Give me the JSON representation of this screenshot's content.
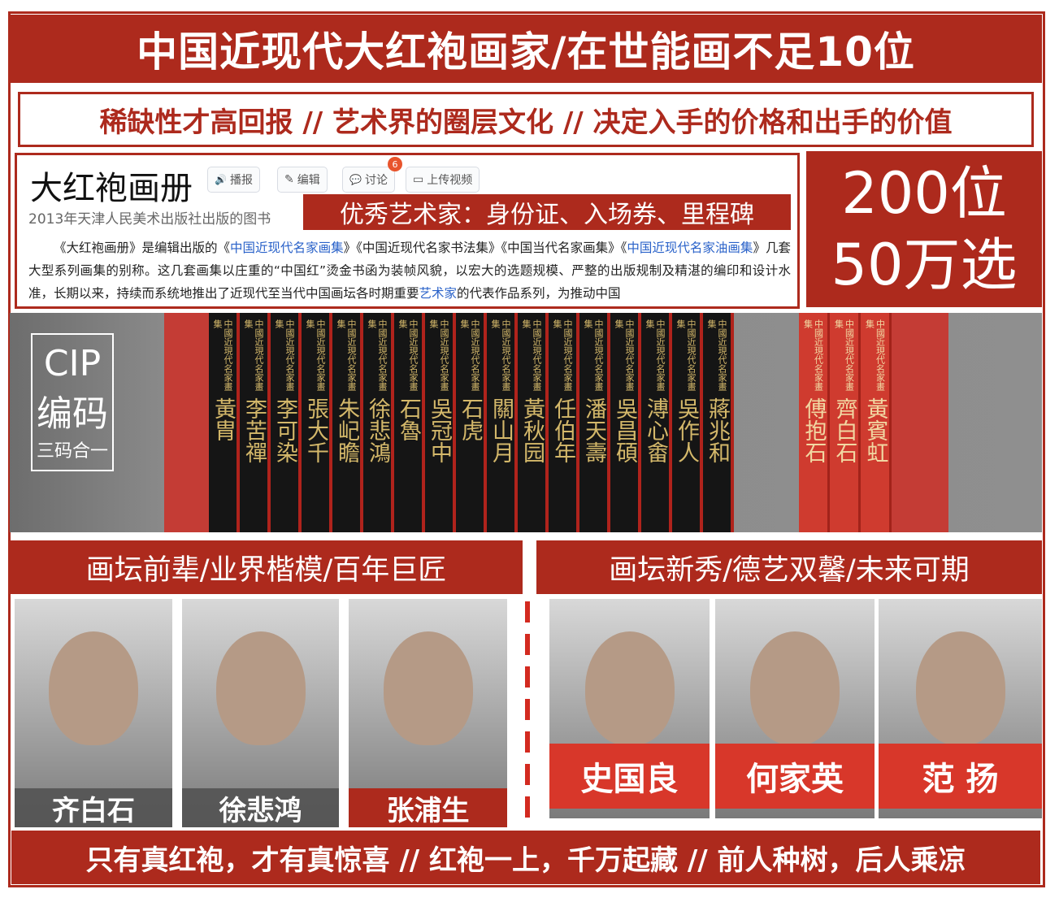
{
  "title": "中国近现代大红袍画家/在世能画不足10位",
  "subtitle": "稀缺性才高回报 // 艺术界的圈层文化 // 决定入手的价格和出手的价值",
  "encyclopedia": {
    "heading": "大红袍画册",
    "buttons": [
      {
        "icon": "speaker-icon",
        "glyph": "🔊",
        "label": "播报"
      },
      {
        "icon": "pencil-icon",
        "glyph": "✎",
        "label": "编辑"
      },
      {
        "icon": "comment-icon",
        "glyph": "💬",
        "label": "讨论"
      },
      {
        "icon": "video-icon",
        "glyph": "▭",
        "label": "上传视频"
      }
    ],
    "discussion_badge": "6",
    "description": "2013年天津人民美术出版社出版的图书",
    "banner": "优秀艺术家：身份证、入场券、里程碑",
    "para": {
      "p1": "《大红袍画册》是编辑出版的《",
      "l1": "中国近现代名家画集",
      "p2": "》《中国近现代名家书法集》《中国当代名家画集》《",
      "l2": "中国近现代名家油画集",
      "p3": "》几套大型系列画集的别称。这几套画集以庄重的“中国红”烫金书函为装帧风貌，以宏大的选题规模、严整的出版规制及精湛的编印和设计水准，长期以来，持续而系统地推出了近现代至当代中国画坛各时期重要",
      "l3": "艺术家",
      "p4": "的代表作品系列，为推动中国"
    }
  },
  "count": {
    "line1": "200位",
    "line2": "50万选"
  },
  "cip": {
    "line1": "CIP",
    "line2": "编码",
    "line3": "三码合一"
  },
  "book_series": "中國近現代名家畫集",
  "books_black": [
    "黃胄",
    "李苦禪",
    "李可染",
    "張大千",
    "朱屺瞻",
    "徐悲鴻",
    "石魯",
    "吳冠中",
    "石虎",
    "關山月",
    "黃秋园",
    "任伯年",
    "潘天壽",
    "吳昌碩",
    "溥心畬",
    "吳作人",
    "蔣兆和"
  ],
  "books_red": [
    "傅抱石",
    "齊白石",
    "黃賓虹"
  ],
  "left_header": "画坛前辈/业界楷模/百年巨匠",
  "right_header": "画坛新秀/德艺双馨/未来可期",
  "masters": [
    "齐白石",
    "徐悲鸿",
    "张浦生"
  ],
  "newcomers": [
    "史国良",
    "何家英",
    "范 扬"
  ],
  "bottom": "只有真红袍，才有真惊喜 // 红袍一上，千万起藏 // 前人种树，后人乘凉",
  "colors": {
    "brand_red": "#ad2a1d",
    "link_blue": "#2a62c9"
  }
}
